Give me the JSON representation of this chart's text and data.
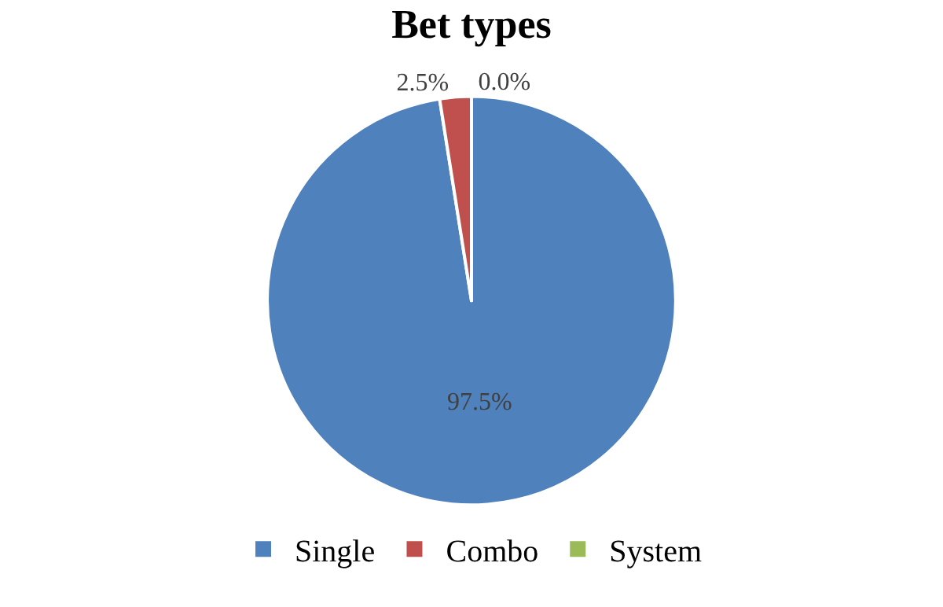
{
  "chart_data": {
    "type": "pie",
    "title": "Bet types",
    "categories": [
      "Single",
      "Combo",
      "System"
    ],
    "values": [
      97.5,
      2.5,
      0.0
    ],
    "colors": [
      "#4f81bd",
      "#c0504d",
      "#9bbb59"
    ],
    "value_labels": [
      "97.5%",
      "2.5%",
      "0.0%"
    ],
    "legend": "bottom"
  }
}
